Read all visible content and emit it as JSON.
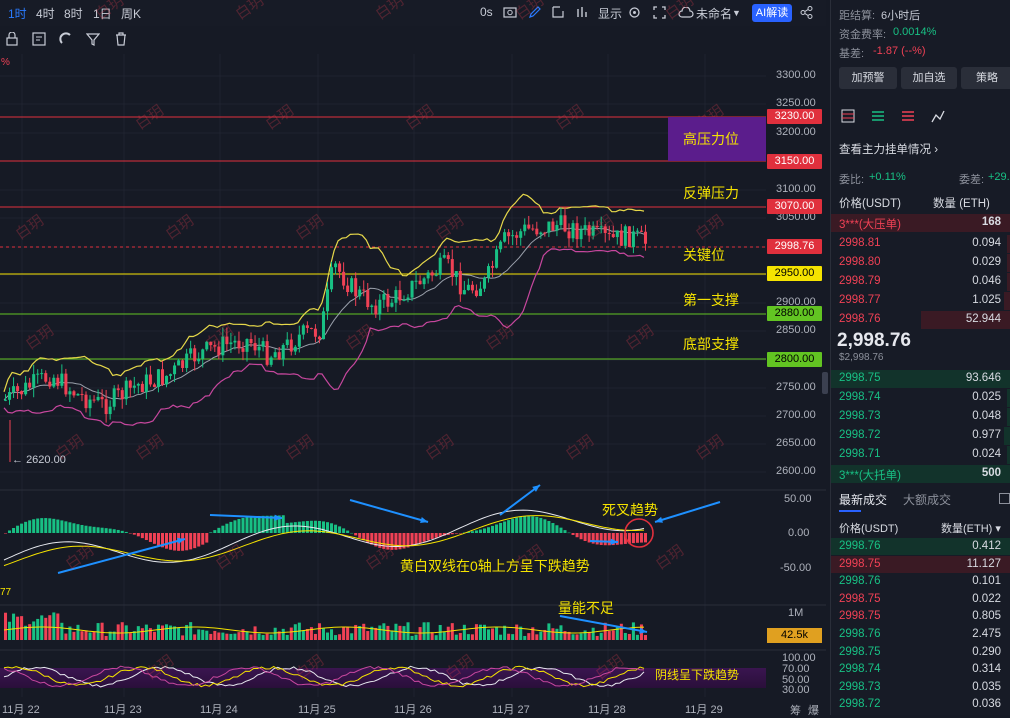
{
  "toolbar": {
    "timeframes": [
      "1时",
      "4时",
      "8时",
      "1日",
      "周K"
    ],
    "right_items": {
      "zero_s": "0s",
      "display": "显示",
      "unnamed": "未命名",
      "ai": "AI解读"
    }
  },
  "price_axis": {
    "ticks": [
      "3300.00",
      "3250.00",
      "3200.00",
      "3100.00",
      "3050.00",
      "2900.00",
      "2850.00",
      "2750.00",
      "2700.00",
      "2650.00",
      "2600.00"
    ],
    "tags": [
      {
        "label": "3230.00",
        "bg": "#e0303d",
        "fg": "#ffffff"
      },
      {
        "label": "3150.00",
        "bg": "#e0303d",
        "fg": "#ffffff"
      },
      {
        "label": "3070.00",
        "bg": "#e0303d",
        "fg": "#ffffff"
      },
      {
        "label": "2998.76",
        "bg": "#e0303d",
        "fg": "#ffffff"
      },
      {
        "label": "2950.00",
        "bg": "#f5e300",
        "fg": "#000000"
      },
      {
        "label": "2880.00",
        "bg": "#62c422",
        "fg": "#000000"
      },
      {
        "label": "2800.00",
        "bg": "#62c422",
        "fg": "#000000"
      }
    ],
    "low_label": "2620.00"
  },
  "annotations": {
    "high_resistance": "高压力位",
    "rebound_pressure": "反弹压力",
    "key_level": "关键位",
    "first_support": "第一支撑",
    "bottom_support": "底部支撑",
    "death_cross": "死叉趋势",
    "macd_note": "黄白双线在0轴上方呈下跌趋势",
    "volume_note": "量能不足",
    "kdj_note": "阴线呈下跌趋势"
  },
  "macd_axis": [
    "50.00",
    "0.00",
    "-50.00"
  ],
  "volume_axis": {
    "max": "1M",
    "tag": "42.5k"
  },
  "kdj_axis": [
    "100.00",
    "70.00",
    "50.00",
    "30.00"
  ],
  "left_edge_macd": "77",
  "left_edge_pct": "%",
  "dates": [
    "11月 22",
    "11月 23",
    "11月 24",
    "11月 25",
    "11月 26",
    "11月 27",
    "11月 28",
    "11月 29"
  ],
  "bottom_right": [
    "筹",
    "爆"
  ],
  "watermark": "白玥",
  "right_panel": {
    "settle_label": "距结算:",
    "settle_value": "6小时后",
    "funding_label": "资金费率:",
    "funding_value": "0.0014%",
    "basis_label": "基差:",
    "basis_value": "-1.87 (--%)",
    "buttons": [
      "加预警",
      "加自选",
      "策略"
    ],
    "book_link": "查看主力挂单情况",
    "ratio_label": "委比:",
    "ratio_value": "+0.11%",
    "diff_label": "委差:",
    "diff_value": "+29.",
    "book_headers": {
      "price": "价格(USDT)",
      "qty": "数量 (ETH)"
    },
    "ask_big": {
      "label": "3***(大压单)",
      "qty": "168"
    },
    "asks": [
      {
        "p": "2998.81",
        "q": "0.094"
      },
      {
        "p": "2998.80",
        "q": "0.029"
      },
      {
        "p": "2998.79",
        "q": "0.046"
      },
      {
        "p": "2998.77",
        "q": "1.025"
      },
      {
        "p": "2998.76",
        "q": "52.944"
      }
    ],
    "mid_price": "2,998.76",
    "mid_sub": "$2,998.76",
    "bids": [
      {
        "p": "2998.75",
        "q": "93.646"
      },
      {
        "p": "2998.74",
        "q": "0.025"
      },
      {
        "p": "2998.73",
        "q": "0.048"
      },
      {
        "p": "2998.72",
        "q": "0.977"
      },
      {
        "p": "2998.71",
        "q": "0.024"
      }
    ],
    "bid_big": {
      "label": "3***(大托单)",
      "qty": "500"
    },
    "trade_tabs": [
      "最新成交",
      "大额成交"
    ],
    "trade_headers": {
      "price": "价格(USDT)",
      "qty": "数量(ETH)"
    },
    "trades": [
      {
        "p": "2998.76",
        "q": "0.412",
        "s": "g"
      },
      {
        "p": "2998.75",
        "q": "11.127",
        "s": "r"
      },
      {
        "p": "2998.76",
        "q": "0.101",
        "s": "g"
      },
      {
        "p": "2998.75",
        "q": "0.022",
        "s": "r"
      },
      {
        "p": "2998.75",
        "q": "0.805",
        "s": "r"
      },
      {
        "p": "2998.76",
        "q": "2.475",
        "s": "g"
      },
      {
        "p": "2998.75",
        "q": "0.290",
        "s": "g"
      },
      {
        "p": "2998.74",
        "q": "0.314",
        "s": "g"
      },
      {
        "p": "2998.73",
        "q": "0.035",
        "s": "g"
      },
      {
        "p": "2998.72",
        "q": "0.036",
        "s": "g"
      }
    ]
  },
  "colors": {
    "up": "#18c084",
    "down": "#f04155",
    "accent": "#2962ff",
    "bg": "#161a25"
  }
}
